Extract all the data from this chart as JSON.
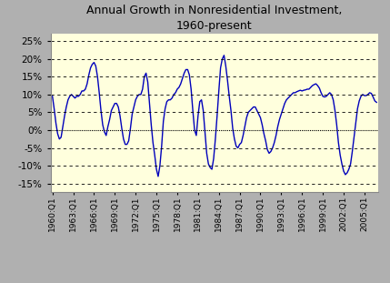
{
  "title": "Annual Growth in Nonresidential Investment,\n1960-present",
  "title_fontsize": 9,
  "ytick_vals": [
    -0.15,
    -0.1,
    -0.05,
    0.0,
    0.05,
    0.1,
    0.15,
    0.2,
    0.25
  ],
  "ylim": [
    -0.175,
    0.27
  ],
  "xlim_start": 1959.75,
  "xlim_end": 2007.0,
  "xtick_years": [
    1960,
    1963,
    1966,
    1969,
    1972,
    1975,
    1978,
    1981,
    1984,
    1987,
    1990,
    1993,
    1996,
    1999,
    2002,
    2005
  ],
  "line_color": "#0000bb",
  "line_width": 1.0,
  "plot_bg_color": "#ffffdd",
  "outer_bg_color": "#b0b0b0",
  "grid_color": "#000000",
  "data": [
    [
      1960.0,
      0.095
    ],
    [
      1960.25,
      0.06
    ],
    [
      1960.5,
      0.02
    ],
    [
      1960.75,
      -0.01
    ],
    [
      1961.0,
      -0.025
    ],
    [
      1961.25,
      -0.02
    ],
    [
      1961.5,
      0.01
    ],
    [
      1961.75,
      0.04
    ],
    [
      1962.0,
      0.065
    ],
    [
      1962.25,
      0.085
    ],
    [
      1962.5,
      0.095
    ],
    [
      1962.75,
      0.1
    ],
    [
      1963.0,
      0.095
    ],
    [
      1963.25,
      0.09
    ],
    [
      1963.5,
      0.095
    ],
    [
      1963.75,
      0.095
    ],
    [
      1964.0,
      0.1
    ],
    [
      1964.25,
      0.11
    ],
    [
      1964.5,
      0.11
    ],
    [
      1964.75,
      0.115
    ],
    [
      1965.0,
      0.13
    ],
    [
      1965.25,
      0.155
    ],
    [
      1965.5,
      0.175
    ],
    [
      1965.75,
      0.185
    ],
    [
      1966.0,
      0.19
    ],
    [
      1966.25,
      0.18
    ],
    [
      1966.5,
      0.15
    ],
    [
      1966.75,
      0.105
    ],
    [
      1967.0,
      0.055
    ],
    [
      1967.25,
      0.015
    ],
    [
      1967.5,
      -0.005
    ],
    [
      1967.75,
      -0.015
    ],
    [
      1968.0,
      0.01
    ],
    [
      1968.25,
      0.03
    ],
    [
      1968.5,
      0.055
    ],
    [
      1968.75,
      0.065
    ],
    [
      1969.0,
      0.075
    ],
    [
      1969.25,
      0.075
    ],
    [
      1969.5,
      0.065
    ],
    [
      1969.75,
      0.04
    ],
    [
      1970.0,
      0.005
    ],
    [
      1970.25,
      -0.025
    ],
    [
      1970.5,
      -0.04
    ],
    [
      1970.75,
      -0.04
    ],
    [
      1971.0,
      -0.03
    ],
    [
      1971.25,
      0.005
    ],
    [
      1971.5,
      0.045
    ],
    [
      1971.75,
      0.065
    ],
    [
      1972.0,
      0.085
    ],
    [
      1972.25,
      0.095
    ],
    [
      1972.5,
      0.1
    ],
    [
      1972.75,
      0.1
    ],
    [
      1973.0,
      0.115
    ],
    [
      1973.25,
      0.15
    ],
    [
      1973.5,
      0.16
    ],
    [
      1973.75,
      0.135
    ],
    [
      1974.0,
      0.075
    ],
    [
      1974.25,
      0.015
    ],
    [
      1974.5,
      -0.035
    ],
    [
      1974.75,
      -0.07
    ],
    [
      1975.0,
      -0.11
    ],
    [
      1975.25,
      -0.13
    ],
    [
      1975.5,
      -0.1
    ],
    [
      1975.75,
      -0.045
    ],
    [
      1976.0,
      0.025
    ],
    [
      1976.25,
      0.06
    ],
    [
      1976.5,
      0.08
    ],
    [
      1976.75,
      0.085
    ],
    [
      1977.0,
      0.085
    ],
    [
      1977.25,
      0.09
    ],
    [
      1977.5,
      0.1
    ],
    [
      1977.75,
      0.105
    ],
    [
      1978.0,
      0.115
    ],
    [
      1978.25,
      0.12
    ],
    [
      1978.5,
      0.13
    ],
    [
      1978.75,
      0.145
    ],
    [
      1979.0,
      0.16
    ],
    [
      1979.25,
      0.17
    ],
    [
      1979.5,
      0.17
    ],
    [
      1979.75,
      0.155
    ],
    [
      1980.0,
      0.115
    ],
    [
      1980.25,
      0.055
    ],
    [
      1980.5,
      0.0
    ],
    [
      1980.75,
      -0.015
    ],
    [
      1981.0,
      0.04
    ],
    [
      1981.25,
      0.08
    ],
    [
      1981.5,
      0.085
    ],
    [
      1981.75,
      0.055
    ],
    [
      1982.0,
      -0.005
    ],
    [
      1982.25,
      -0.065
    ],
    [
      1982.5,
      -0.095
    ],
    [
      1982.75,
      -0.105
    ],
    [
      1983.0,
      -0.11
    ],
    [
      1983.25,
      -0.08
    ],
    [
      1983.5,
      -0.025
    ],
    [
      1983.75,
      0.04
    ],
    [
      1984.0,
      0.11
    ],
    [
      1984.25,
      0.175
    ],
    [
      1984.5,
      0.2
    ],
    [
      1984.75,
      0.21
    ],
    [
      1985.0,
      0.18
    ],
    [
      1985.25,
      0.14
    ],
    [
      1985.5,
      0.095
    ],
    [
      1985.75,
      0.055
    ],
    [
      1986.0,
      0.005
    ],
    [
      1986.25,
      -0.025
    ],
    [
      1986.5,
      -0.045
    ],
    [
      1986.75,
      -0.05
    ],
    [
      1987.0,
      -0.04
    ],
    [
      1987.25,
      -0.035
    ],
    [
      1987.5,
      -0.015
    ],
    [
      1987.75,
      0.01
    ],
    [
      1988.0,
      0.035
    ],
    [
      1988.25,
      0.05
    ],
    [
      1988.5,
      0.055
    ],
    [
      1988.75,
      0.06
    ],
    [
      1989.0,
      0.065
    ],
    [
      1989.25,
      0.065
    ],
    [
      1989.5,
      0.055
    ],
    [
      1989.75,
      0.045
    ],
    [
      1990.0,
      0.035
    ],
    [
      1990.25,
      0.015
    ],
    [
      1990.5,
      -0.01
    ],
    [
      1990.75,
      -0.03
    ],
    [
      1991.0,
      -0.055
    ],
    [
      1991.25,
      -0.065
    ],
    [
      1991.5,
      -0.06
    ],
    [
      1991.75,
      -0.05
    ],
    [
      1992.0,
      -0.035
    ],
    [
      1992.25,
      -0.015
    ],
    [
      1992.5,
      0.01
    ],
    [
      1992.75,
      0.03
    ],
    [
      1993.0,
      0.045
    ],
    [
      1993.25,
      0.06
    ],
    [
      1993.5,
      0.075
    ],
    [
      1993.75,
      0.085
    ],
    [
      1994.0,
      0.09
    ],
    [
      1994.25,
      0.095
    ],
    [
      1994.5,
      0.1
    ],
    [
      1994.75,
      0.105
    ],
    [
      1995.0,
      0.105
    ],
    [
      1995.25,
      0.108
    ],
    [
      1995.5,
      0.11
    ],
    [
      1995.75,
      0.112
    ],
    [
      1996.0,
      0.11
    ],
    [
      1996.25,
      0.112
    ],
    [
      1996.5,
      0.113
    ],
    [
      1996.75,
      0.115
    ],
    [
      1997.0,
      0.115
    ],
    [
      1997.25,
      0.12
    ],
    [
      1997.5,
      0.125
    ],
    [
      1997.75,
      0.128
    ],
    [
      1998.0,
      0.13
    ],
    [
      1998.25,
      0.125
    ],
    [
      1998.5,
      0.118
    ],
    [
      1998.75,
      0.105
    ],
    [
      1999.0,
      0.095
    ],
    [
      1999.25,
      0.093
    ],
    [
      1999.5,
      0.095
    ],
    [
      1999.75,
      0.1
    ],
    [
      2000.0,
      0.105
    ],
    [
      2000.25,
      0.1
    ],
    [
      2000.5,
      0.085
    ],
    [
      2000.75,
      0.055
    ],
    [
      2001.0,
      0.015
    ],
    [
      2001.25,
      -0.035
    ],
    [
      2001.5,
      -0.07
    ],
    [
      2001.75,
      -0.095
    ],
    [
      2002.0,
      -0.115
    ],
    [
      2002.25,
      -0.125
    ],
    [
      2002.5,
      -0.12
    ],
    [
      2002.75,
      -0.11
    ],
    [
      2003.0,
      -0.095
    ],
    [
      2003.25,
      -0.06
    ],
    [
      2003.5,
      -0.02
    ],
    [
      2003.75,
      0.02
    ],
    [
      2004.0,
      0.06
    ],
    [
      2004.25,
      0.082
    ],
    [
      2004.5,
      0.095
    ],
    [
      2004.75,
      0.1
    ],
    [
      2005.0,
      0.097
    ],
    [
      2005.25,
      0.097
    ],
    [
      2005.5,
      0.1
    ],
    [
      2005.75,
      0.105
    ],
    [
      2006.0,
      0.103
    ],
    [
      2006.25,
      0.093
    ],
    [
      2006.5,
      0.082
    ],
    [
      2006.75,
      0.078
    ]
  ]
}
